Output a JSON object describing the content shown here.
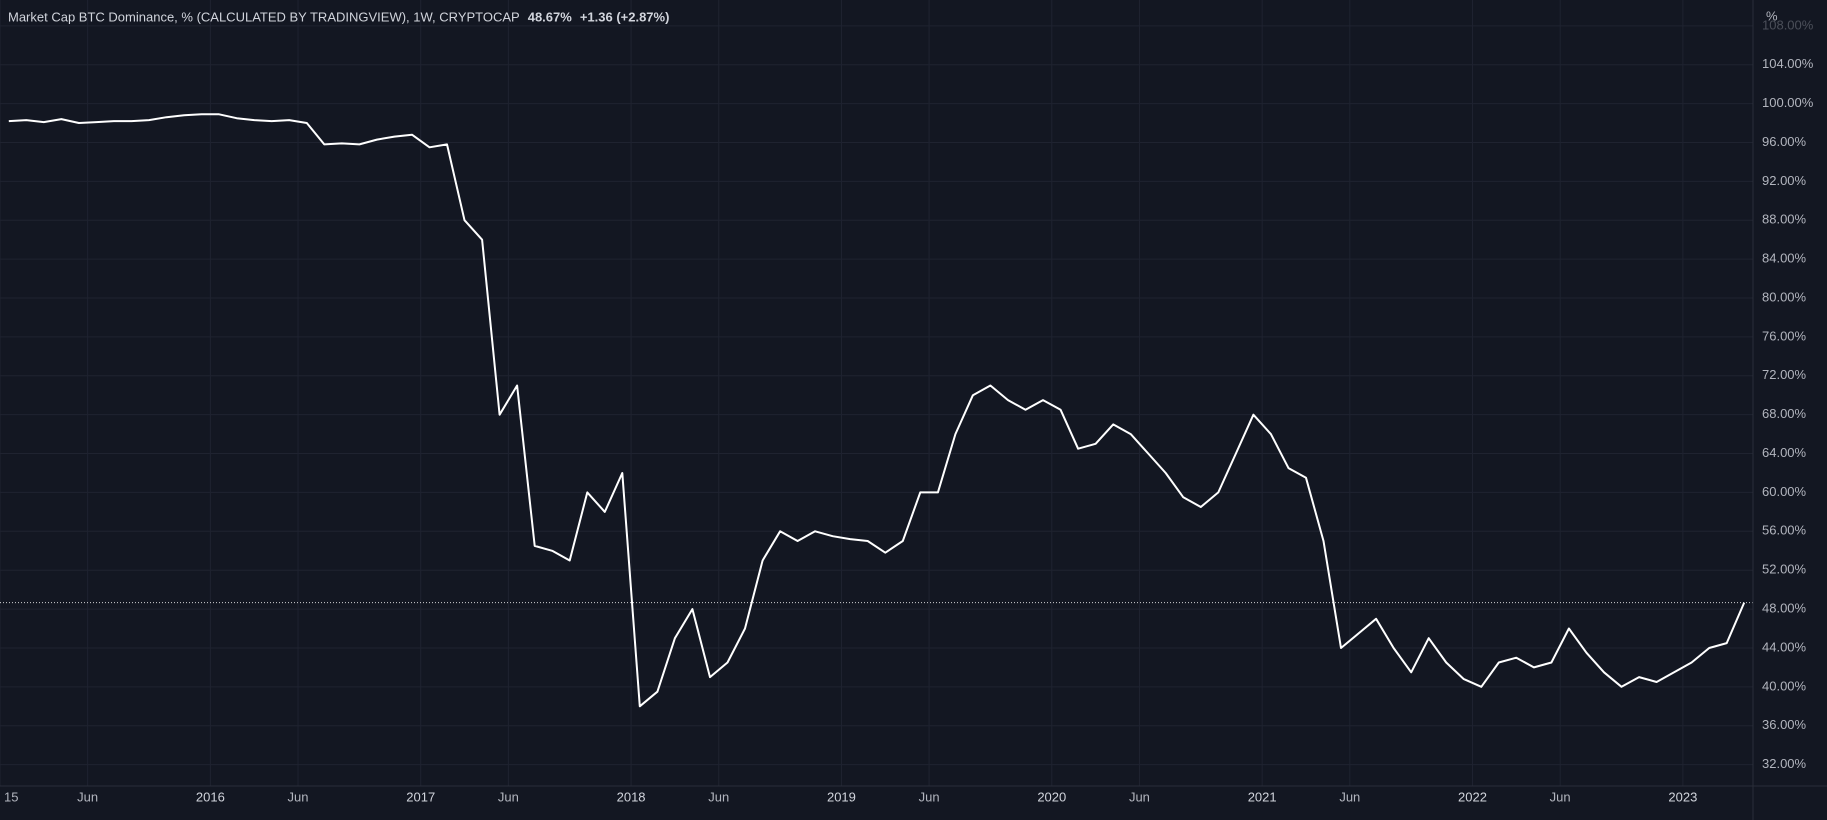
{
  "chart_data": {
    "type": "line",
    "title": "Market Cap BTC Dominance, % (CALCULATED BY TRADINGVIEW), 1W, CRYPTOCAP",
    "last_label": "48.67%",
    "change_label": "+1.36 (+2.87%)",
    "y_unit_label": "%",
    "color": "#ffffff",
    "grid": true,
    "price_line": true,
    "x": [
      "2015-01",
      "2015-02",
      "2015-03",
      "2015-04",
      "2015-05",
      "2015-06",
      "2015-07",
      "2015-08",
      "2015-09",
      "2015-10",
      "2015-11",
      "2015-12",
      "2016-01",
      "2016-02",
      "2016-03",
      "2016-04",
      "2016-05",
      "2016-06",
      "2016-07",
      "2016-08",
      "2016-09",
      "2016-10",
      "2016-11",
      "2016-12",
      "2017-01",
      "2017-02",
      "2017-03",
      "2017-04",
      "2017-05",
      "2017-06",
      "2017-07",
      "2017-08",
      "2017-09",
      "2017-10",
      "2017-11",
      "2017-12",
      "2018-01",
      "2018-02",
      "2018-03",
      "2018-04",
      "2018-05",
      "2018-06",
      "2018-07",
      "2018-08",
      "2018-09",
      "2018-10",
      "2018-11",
      "2018-12",
      "2019-01",
      "2019-02",
      "2019-03",
      "2019-04",
      "2019-05",
      "2019-06",
      "2019-07",
      "2019-08",
      "2019-09",
      "2019-10",
      "2019-11",
      "2019-12",
      "2020-01",
      "2020-02",
      "2020-03",
      "2020-04",
      "2020-05",
      "2020-06",
      "2020-07",
      "2020-08",
      "2020-09",
      "2020-10",
      "2020-11",
      "2020-12",
      "2021-01",
      "2021-02",
      "2021-03",
      "2021-04",
      "2021-05",
      "2021-06",
      "2021-07",
      "2021-08",
      "2021-09",
      "2021-10",
      "2021-11",
      "2021-12",
      "2022-01",
      "2022-02",
      "2022-03",
      "2022-04",
      "2022-05",
      "2022-06",
      "2022-07",
      "2022-08",
      "2022-09",
      "2022-10",
      "2022-11",
      "2022-12",
      "2023-01",
      "2023-02",
      "2023-03",
      "2023-04"
    ],
    "values": [
      98.2,
      98.3,
      98.1,
      98.4,
      98.0,
      98.1,
      98.2,
      98.2,
      98.3,
      98.6,
      98.8,
      98.9,
      98.9,
      98.5,
      98.3,
      98.2,
      98.3,
      98.0,
      95.8,
      95.9,
      95.8,
      96.3,
      96.6,
      96.8,
      95.5,
      95.8,
      88.0,
      86.0,
      68.0,
      71.0,
      54.5,
      54.0,
      53.0,
      60.0,
      58.0,
      62.0,
      38.0,
      39.5,
      45.0,
      48.0,
      41.0,
      42.5,
      46.0,
      53.0,
      56.0,
      55.0,
      56.0,
      55.5,
      55.2,
      55.0,
      53.8,
      55.0,
      60.0,
      60.0,
      66.0,
      70.0,
      71.0,
      69.5,
      68.5,
      69.5,
      68.5,
      64.5,
      65.0,
      67.0,
      66.0,
      64.0,
      62.0,
      59.5,
      58.5,
      60.0,
      64.0,
      68.0,
      66.0,
      62.5,
      61.5,
      55.0,
      44.0,
      45.5,
      47.0,
      44.0,
      41.5,
      45.0,
      42.5,
      40.8,
      40.0,
      42.5,
      43.0,
      42.0,
      42.5,
      46.0,
      43.5,
      41.5,
      40.0,
      41.0,
      40.5,
      41.5,
      42.5,
      44.0,
      44.5,
      48.67
    ],
    "xlim": [
      "2015-01",
      "2023-05"
    ],
    "xticks": [
      {
        "value": "2015-01",
        "label": "15"
      },
      {
        "value": "2015-06",
        "label": "Jun"
      },
      {
        "value": "2016-01",
        "label": "2016"
      },
      {
        "value": "2016-06",
        "label": "Jun"
      },
      {
        "value": "2017-01",
        "label": "2017"
      },
      {
        "value": "2017-06",
        "label": "Jun"
      },
      {
        "value": "2018-01",
        "label": "2018"
      },
      {
        "value": "2018-06",
        "label": "Jun"
      },
      {
        "value": "2019-01",
        "label": "2019"
      },
      {
        "value": "2019-06",
        "label": "Jun"
      },
      {
        "value": "2020-01",
        "label": "2020"
      },
      {
        "value": "2020-06",
        "label": "Jun"
      },
      {
        "value": "2021-01",
        "label": "2021"
      },
      {
        "value": "2021-06",
        "label": "Jun"
      },
      {
        "value": "2022-01",
        "label": "2022"
      },
      {
        "value": "2022-06",
        "label": "Jun"
      },
      {
        "value": "2023-01",
        "label": "2023"
      }
    ],
    "ylim": [
      29.8,
      109.7
    ],
    "yticks": [
      {
        "value": 32,
        "label": "32.00%"
      },
      {
        "value": 36,
        "label": "36.00%"
      },
      {
        "value": 40,
        "label": "40.00%"
      },
      {
        "value": 44,
        "label": "44.00%"
      },
      {
        "value": 48,
        "label": "48.00%"
      },
      {
        "value": 52,
        "label": "52.00%"
      },
      {
        "value": 56,
        "label": "56.00%"
      },
      {
        "value": 60,
        "label": "60.00%"
      },
      {
        "value": 64,
        "label": "64.00%"
      },
      {
        "value": 68,
        "label": "68.00%"
      },
      {
        "value": 72,
        "label": "72.00%"
      },
      {
        "value": 76,
        "label": "76.00%"
      },
      {
        "value": 80,
        "label": "80.00%"
      },
      {
        "value": 84,
        "label": "84.00%"
      },
      {
        "value": 88,
        "label": "88.00%"
      },
      {
        "value": 92,
        "label": "92.00%"
      },
      {
        "value": 96,
        "label": "96.00%"
      },
      {
        "value": 100,
        "label": "100.00%"
      },
      {
        "value": 104,
        "label": "104.00%"
      },
      {
        "value": 108,
        "label": "108.00%"
      }
    ]
  }
}
